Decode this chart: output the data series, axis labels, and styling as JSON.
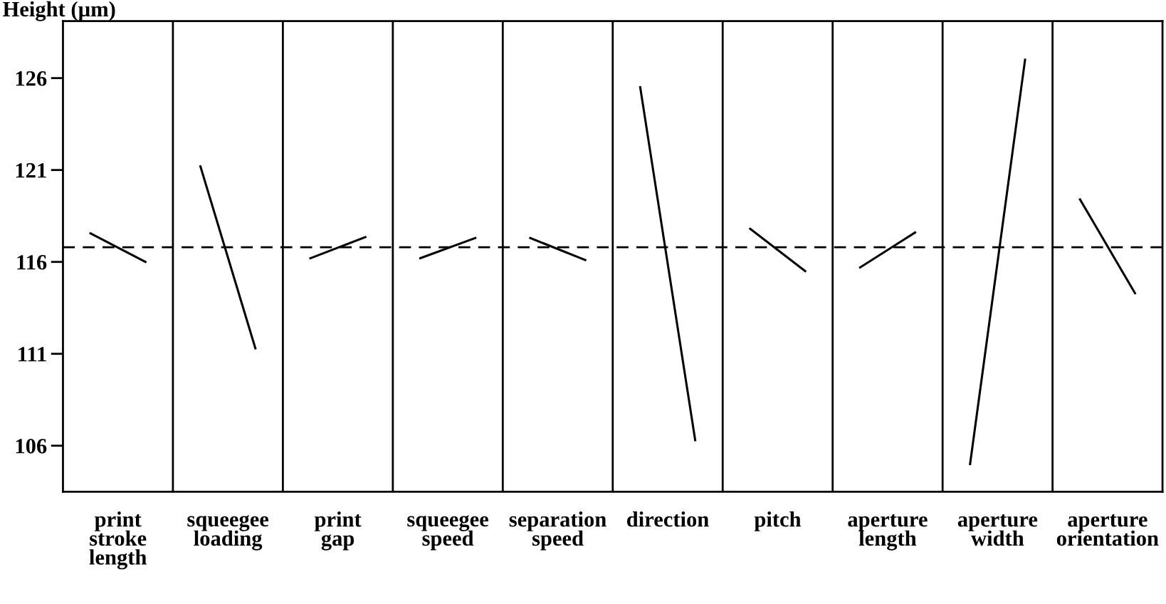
{
  "chart_data": {
    "type": "line",
    "ylabel": "Height (µm)",
    "color": "#000000",
    "categories": [
      null,
      null,
      null,
      null,
      null,
      null,
      null,
      null,
      null,
      null,
      null,
      null,
      null,
      null,
      null,
      null,
      null,
      null,
      null,
      null
    ],
    "ylim": [
      103.5,
      129.1
    ],
    "yticks": [
      106,
      111,
      116,
      121,
      126
    ],
    "series": [
      {
        "values": [
          117.55,
          116.0,
          null,
          null,
          null,
          null,
          null,
          null,
          null,
          null,
          null,
          null,
          null,
          null,
          null,
          null,
          null,
          null,
          null,
          null
        ]
      },
      {
        "values": [
          null,
          null,
          121.2,
          111.3,
          null,
          null,
          null,
          null,
          null,
          null,
          null,
          null,
          null,
          null,
          null,
          null,
          null,
          null,
          null,
          null
        ]
      },
      {
        "values": [
          null,
          null,
          null,
          null,
          116.2,
          117.35,
          null,
          null,
          null,
          null,
          null,
          null,
          null,
          null,
          null,
          null,
          null,
          null,
          null,
          null
        ]
      },
      {
        "values": [
          null,
          null,
          null,
          null,
          null,
          null,
          116.2,
          117.3,
          null,
          null,
          null,
          null,
          null,
          null,
          null,
          null,
          null,
          null,
          null,
          null
        ]
      },
      {
        "values": [
          null,
          null,
          null,
          null,
          null,
          null,
          null,
          null,
          117.3,
          116.1,
          null,
          null,
          null,
          null,
          null,
          null,
          null,
          null,
          null,
          null
        ]
      },
      {
        "values": [
          null,
          null,
          null,
          null,
          null,
          null,
          null,
          null,
          null,
          null,
          125.5,
          106.3,
          null,
          null,
          null,
          null,
          null,
          null,
          null,
          null
        ]
      },
      {
        "values": [
          null,
          null,
          null,
          null,
          null,
          null,
          null,
          null,
          null,
          null,
          null,
          null,
          117.8,
          115.5,
          null,
          null,
          null,
          null,
          null,
          null
        ]
      },
      {
        "values": [
          null,
          null,
          null,
          null,
          null,
          null,
          null,
          null,
          null,
          null,
          null,
          null,
          null,
          null,
          115.7,
          117.6,
          null,
          null,
          null,
          null
        ]
      },
      {
        "values": [
          null,
          null,
          null,
          null,
          null,
          null,
          null,
          null,
          null,
          null,
          null,
          null,
          null,
          null,
          null,
          null,
          105.0,
          127.0,
          null,
          null
        ]
      },
      {
        "values": [
          null,
          null,
          null,
          null,
          null,
          null,
          null,
          null,
          null,
          null,
          null,
          null,
          null,
          null,
          null,
          null,
          null,
          null,
          119.4,
          114.3
        ]
      }
    ],
    "annotations": [
      "print\nstroke\nlength",
      "squeegee\nloading",
      "print\ngap",
      "squeegee\nspeed",
      "separation\nspeed",
      "direction",
      "pitch",
      "aperture\nlength",
      "aperture\nwidth",
      "aperture\norientation"
    ],
    "ref_lines": [
      {
        "axis": "y",
        "value": 116.8,
        "line_style": "dashed",
        "color": "#000000"
      }
    ]
  }
}
